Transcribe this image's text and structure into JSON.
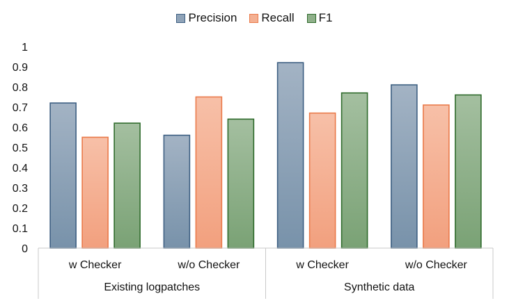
{
  "chart_data": {
    "type": "bar",
    "groups": [
      {
        "label": "Existing logpatches",
        "categories": [
          "w Checker",
          "w/o Checker"
        ]
      },
      {
        "label": "Synthetic data",
        "categories": [
          "w Checker",
          "w/o Checker"
        ]
      }
    ],
    "categories": [
      "w Checker",
      "w/o Checker",
      "w Checker",
      "w/o Checker"
    ],
    "series": [
      {
        "name": "Precision",
        "values": [
          0.72,
          0.56,
          0.92,
          0.81
        ],
        "fill_top": "#a3b3c4",
        "fill_bottom": "#7892aa",
        "stroke": "#3d5f82"
      },
      {
        "name": "Recall",
        "values": [
          0.55,
          0.75,
          0.67,
          0.71
        ],
        "fill_top": "#f7c0a8",
        "fill_bottom": "#f2a07e",
        "stroke": "#ea7a4a"
      },
      {
        "name": "F1",
        "values": [
          0.62,
          0.64,
          0.77,
          0.76
        ],
        "fill_top": "#a4bfa0",
        "fill_bottom": "#7aa275",
        "stroke": "#2f6b2c"
      }
    ],
    "ylim": [
      0,
      1
    ],
    "yticks": [
      "0",
      "0.1",
      "0.2",
      "0.3",
      "0.4",
      "0.5",
      "0.6",
      "0.7",
      "0.8",
      "0.9",
      "1"
    ],
    "grid": false,
    "legend_position": "top-center"
  }
}
